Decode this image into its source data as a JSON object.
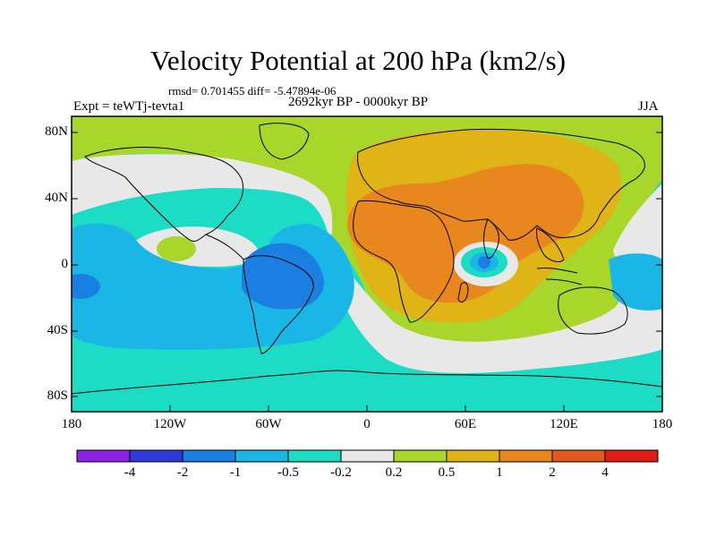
{
  "title": "Velocity Potential at 200 hPa (km2/s)",
  "stats": "rmsd= 0.701455  diff= -5.47894e-06",
  "period": "2692kyr BP - 0000kyr BP",
  "experiment": "Expt = teWTj-tevta1",
  "season": "JJA",
  "lat_labels": [
    "80N",
    "40N",
    "0",
    "40S",
    "80S"
  ],
  "lon_labels": [
    "180",
    "120W",
    "60W",
    "0",
    "60E",
    "120E",
    "180"
  ],
  "colorbar": {
    "colors": [
      "#8b22e6",
      "#2f3bd8",
      "#1a7fe0",
      "#19b6e6",
      "#1ddcc6",
      "#e8e8e8",
      "#a9d62a",
      "#e0b316",
      "#e8871e",
      "#e05a20",
      "#e01e16"
    ],
    "labels": [
      "-4",
      "-2",
      "-1",
      "-0.5",
      "-0.2",
      "0.2",
      "0.5",
      "1",
      "2",
      "4"
    ]
  },
  "colors": {
    "blue_dark": "#1a7fe0",
    "blue_light": "#19b6e6",
    "cyan": "#1ddcc6",
    "gray": "#e8e8e8",
    "yellowgreen": "#a9d62a",
    "gold": "#e0b316",
    "orange": "#e8871e"
  }
}
